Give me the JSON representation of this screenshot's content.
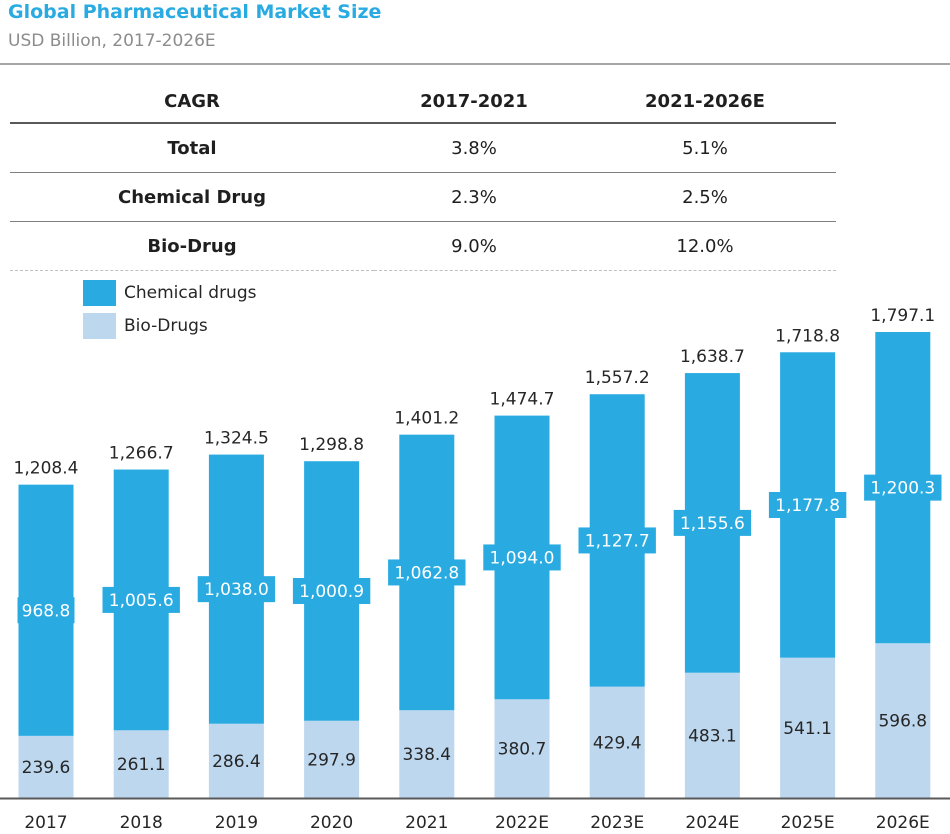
{
  "header": {
    "title": "Global Pharmaceutical Market Size",
    "subtitle": "USD Billion, 2017-2026E"
  },
  "cagr_table": {
    "headers": [
      "CAGR",
      "2017-2021",
      "2021-2026E"
    ],
    "rows": [
      {
        "label": "Total",
        "v1": "3.8%",
        "v2": "5.1%"
      },
      {
        "label": "Chemical Drug",
        "v1": "2.3%",
        "v2": "2.5%"
      },
      {
        "label": "Bio-Drug",
        "v1": "9.0%",
        "v2": "12.0%"
      }
    ]
  },
  "colors": {
    "chemical": "#29abe2",
    "bio": "#bdd7ee",
    "axis": "#595959"
  },
  "chart_data": {
    "type": "bar",
    "stacked": true,
    "title": "Global Pharmaceutical Market Size",
    "subtitle": "USD Billion, 2017-2026E",
    "categories": [
      "2017",
      "2018",
      "2019",
      "2020",
      "2021",
      "2022E",
      "2023E",
      "2024E",
      "2025E",
      "2026E"
    ],
    "series": [
      {
        "name": "Bio-Drugs",
        "values": [
          239.6,
          261.1,
          286.4,
          297.9,
          338.4,
          380.7,
          429.4,
          483.1,
          541.1,
          596.8
        ],
        "labels": [
          "239.6",
          "261.1",
          "286.4",
          "297.9",
          "338.4",
          "380.7",
          "429.4",
          "483.1",
          "541.1",
          "596.8"
        ]
      },
      {
        "name": "Chemical drugs",
        "values": [
          968.8,
          1005.6,
          1038.0,
          1000.9,
          1062.8,
          1094.0,
          1127.7,
          1155.6,
          1177.8,
          1200.3
        ],
        "labels": [
          "968.8",
          "1,005.6",
          "1,038.0",
          "1,000.9",
          "1,062.8",
          "1,094.0",
          "1,127.7",
          "1,155.6",
          "1,177.8",
          "1,200.3"
        ]
      }
    ],
    "totals": [
      1208.4,
      1266.7,
      1324.5,
      1298.8,
      1401.2,
      1474.7,
      1557.2,
      1638.7,
      1718.8,
      1797.1
    ],
    "total_labels": [
      "1,208.4",
      "1,266.7",
      "1,324.5",
      "1,298.8",
      "1,401.2",
      "1,474.7",
      "1,557.2",
      "1,638.7",
      "1,718.8",
      "1,797.1"
    ],
    "legend": [
      "Chemical drugs",
      "Bio-Drugs"
    ],
    "legend_position": "top-left",
    "ylim": [
      0,
      1797.1
    ],
    "grid": false,
    "xlabel": "",
    "ylabel": ""
  }
}
